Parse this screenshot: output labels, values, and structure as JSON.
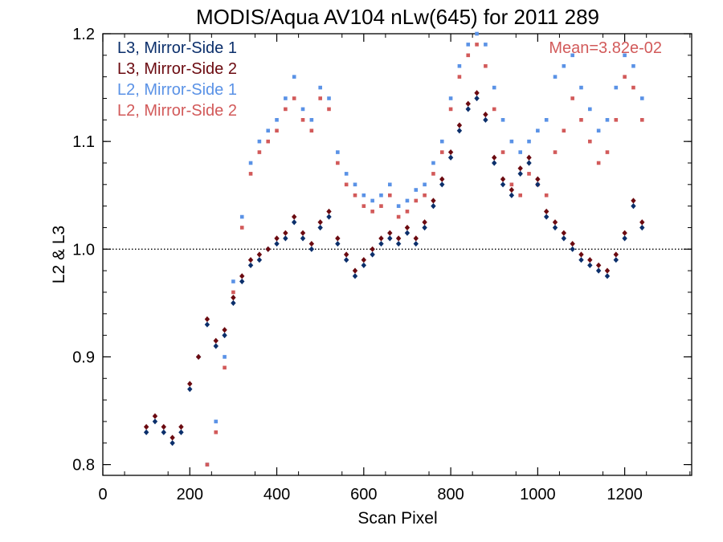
{
  "chart_data": {
    "type": "scatter",
    "title": "MODIS/Aqua AV104 nLw(645) for 2011 289",
    "xlabel": "Scan Pixel",
    "ylabel": "L2 & L3",
    "xlim": [
      0,
      1354
    ],
    "ylim": [
      0.79,
      1.2
    ],
    "xticks": [
      0,
      200,
      400,
      600,
      800,
      1000,
      1200
    ],
    "xtick_labels": [
      "0",
      "200",
      "400",
      "600",
      "800",
      "1000",
      "1200"
    ],
    "yticks": [
      0.8,
      0.9,
      1.0,
      1.1,
      1.2
    ],
    "ytick_labels": [
      "0.8",
      "0.9",
      "1.0",
      "1.1",
      "1.2"
    ],
    "reference_line": {
      "y": 1.0,
      "style": "dotted"
    },
    "annotation": {
      "text": "Mean=3.82e-02",
      "position": "top-right",
      "color": "#d25a5a"
    },
    "legend": {
      "position": "top-left"
    },
    "grid": false,
    "series": [
      {
        "name": "L3, Mirror-Side 1",
        "color": "#0b2f6b",
        "marker": "diamond",
        "x": [
          100,
          120,
          140,
          160,
          180,
          200,
          220,
          240,
          260,
          280,
          300,
          320,
          340,
          360,
          380,
          400,
          420,
          440,
          460,
          480,
          500,
          520,
          540,
          560,
          580,
          600,
          620,
          640,
          660,
          680,
          700,
          720,
          740,
          760,
          780,
          800,
          820,
          840,
          860,
          880,
          900,
          920,
          940,
          960,
          980,
          1000,
          1020,
          1040,
          1060,
          1080,
          1100,
          1120,
          1140,
          1160,
          1180,
          1200,
          1220,
          1240
        ],
        "y": [
          0.83,
          0.84,
          0.83,
          0.82,
          0.83,
          0.87,
          0.9,
          0.93,
          0.91,
          0.92,
          0.95,
          0.97,
          0.985,
          0.99,
          1.0,
          1.005,
          1.01,
          1.025,
          1.01,
          1.0,
          1.02,
          1.03,
          1.005,
          0.99,
          0.975,
          0.985,
          0.995,
          1.005,
          1.01,
          1.005,
          1.015,
          1.005,
          1.02,
          1.04,
          1.06,
          1.085,
          1.11,
          1.13,
          1.14,
          1.12,
          1.08,
          1.06,
          1.05,
          1.07,
          1.08,
          1.06,
          1.03,
          1.02,
          1.01,
          1.0,
          0.99,
          0.985,
          0.98,
          0.975,
          0.99,
          1.01,
          1.04,
          1.02
        ]
      },
      {
        "name": "L3, Mirror-Side 2",
        "color": "#6b0a10",
        "marker": "diamond",
        "x": [
          100,
          120,
          140,
          160,
          180,
          200,
          220,
          240,
          260,
          280,
          300,
          320,
          340,
          360,
          380,
          400,
          420,
          440,
          460,
          480,
          500,
          520,
          540,
          560,
          580,
          600,
          620,
          640,
          660,
          680,
          700,
          720,
          740,
          760,
          780,
          800,
          820,
          840,
          860,
          880,
          900,
          920,
          940,
          960,
          980,
          1000,
          1020,
          1040,
          1060,
          1080,
          1100,
          1120,
          1140,
          1160,
          1180,
          1200,
          1220,
          1240
        ],
        "y": [
          0.835,
          0.845,
          0.835,
          0.825,
          0.835,
          0.875,
          0.9,
          0.935,
          0.915,
          0.925,
          0.955,
          0.975,
          0.99,
          0.995,
          1.0,
          1.01,
          1.015,
          1.03,
          1.015,
          1.005,
          1.025,
          1.035,
          1.01,
          0.995,
          0.98,
          0.99,
          1.0,
          1.01,
          1.015,
          1.01,
          1.02,
          1.01,
          1.025,
          1.045,
          1.065,
          1.09,
          1.115,
          1.135,
          1.145,
          1.125,
          1.085,
          1.065,
          1.055,
          1.075,
          1.085,
          1.065,
          1.035,
          1.025,
          1.015,
          1.005,
          0.995,
          0.99,
          0.985,
          0.98,
          0.995,
          1.015,
          1.045,
          1.025
        ]
      },
      {
        "name": "L2, Mirror-Side 1",
        "color": "#5a92e6",
        "marker": "square",
        "x": [
          240,
          260,
          280,
          300,
          320,
          340,
          360,
          380,
          400,
          420,
          440,
          460,
          480,
          500,
          520,
          540,
          560,
          580,
          600,
          620,
          640,
          660,
          680,
          700,
          720,
          740,
          760,
          780,
          800,
          820,
          840,
          860,
          880,
          900,
          920,
          940,
          960,
          980,
          1000,
          1020,
          1040,
          1060,
          1080,
          1100,
          1120,
          1140,
          1160,
          1180,
          1200,
          1220,
          1240
        ],
        "y": [
          0.8,
          0.84,
          0.9,
          0.97,
          1.03,
          1.08,
          1.1,
          1.11,
          1.12,
          1.14,
          1.16,
          1.13,
          1.12,
          1.15,
          1.14,
          1.09,
          1.07,
          1.06,
          1.05,
          1.045,
          1.05,
          1.06,
          1.04,
          1.045,
          1.055,
          1.06,
          1.08,
          1.1,
          1.14,
          1.17,
          1.19,
          1.2,
          1.19,
          1.15,
          1.12,
          1.1,
          1.09,
          1.1,
          1.11,
          1.12,
          1.16,
          1.17,
          1.18,
          1.15,
          1.13,
          1.11,
          1.12,
          1.15,
          1.18,
          1.17,
          1.14
        ]
      },
      {
        "name": "L2, Mirror-Side 2",
        "color": "#d25a5a",
        "marker": "square",
        "x": [
          240,
          260,
          280,
          300,
          320,
          340,
          360,
          380,
          400,
          420,
          440,
          460,
          480,
          500,
          520,
          540,
          560,
          580,
          600,
          620,
          640,
          660,
          680,
          700,
          720,
          740,
          760,
          780,
          800,
          820,
          840,
          860,
          880,
          900,
          920,
          940,
          960,
          980,
          1000,
          1020,
          1040,
          1060,
          1080,
          1100,
          1120,
          1140,
          1160,
          1180,
          1200,
          1220,
          1240
        ],
        "y": [
          0.8,
          0.83,
          0.89,
          0.96,
          1.02,
          1.07,
          1.09,
          1.1,
          1.11,
          1.13,
          1.14,
          1.12,
          1.11,
          1.14,
          1.13,
          1.08,
          1.06,
          1.05,
          1.04,
          1.035,
          1.04,
          1.05,
          1.03,
          1.035,
          1.045,
          1.05,
          1.07,
          1.09,
          1.13,
          1.16,
          1.18,
          1.19,
          1.17,
          1.13,
          1.09,
          1.06,
          1.05,
          1.07,
          1.06,
          1.05,
          1.09,
          1.11,
          1.14,
          1.12,
          1.1,
          1.08,
          1.09,
          1.12,
          1.16,
          1.15,
          1.12
        ]
      }
    ]
  }
}
